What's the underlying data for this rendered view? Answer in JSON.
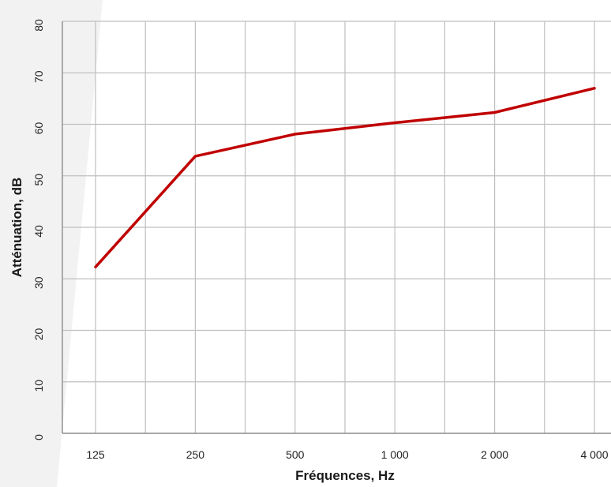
{
  "chart_data": {
    "type": "line",
    "title": "",
    "xlabel": "Fréquences, Hz",
    "ylabel": "Atténuation, dB",
    "categories": [
      "125",
      "250",
      "500",
      "1 000",
      "2 000",
      "4 000"
    ],
    "series": [
      {
        "values": [
          32.3,
          53.8,
          58.1,
          60.3,
          62.3,
          67.0
        ]
      }
    ],
    "ylim": [
      0,
      80
    ],
    "yticks": [
      "0",
      "10",
      "20",
      "30",
      "40",
      "50",
      "60",
      "70",
      "80"
    ],
    "grid": true,
    "legend": "none",
    "colors": {
      "series": "#c00000",
      "grid": "#bfbfbf",
      "axis": "#8c8c8c"
    }
  }
}
